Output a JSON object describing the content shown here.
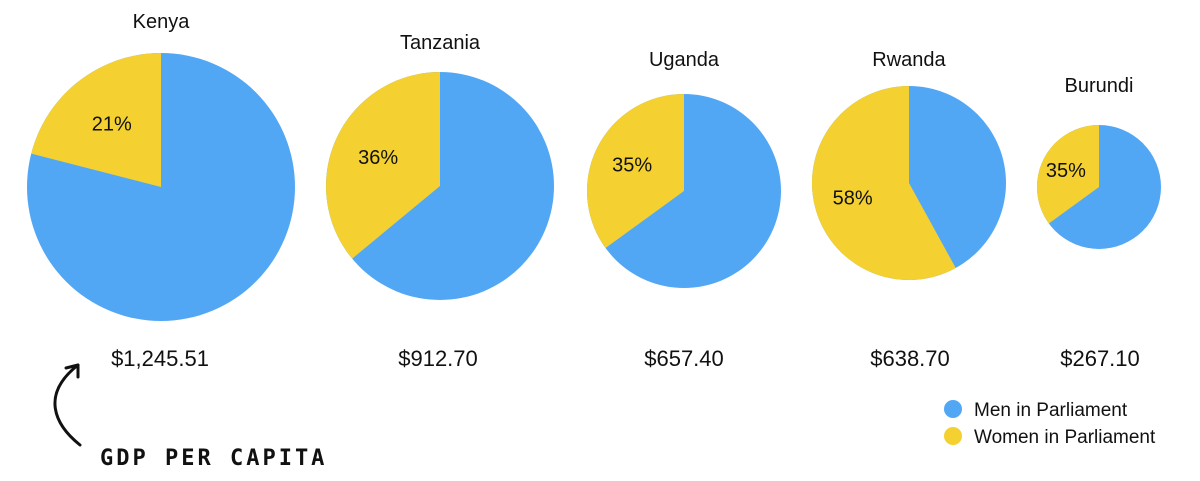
{
  "chart_data": {
    "type": "pie",
    "series_names": [
      "Men in Parliament",
      "Women in Parliament"
    ],
    "colors": {
      "men": "#52a7f5",
      "women": "#f4d030"
    },
    "charts": [
      {
        "country": "Kenya",
        "women_pct": 21,
        "women_label": "21%",
        "gdp_per_capita": 1245.51,
        "gdp_label": "$1,245.51"
      },
      {
        "country": "Tanzania",
        "women_pct": 36,
        "women_label": "36%",
        "gdp_per_capita": 912.7,
        "gdp_label": "$912.70"
      },
      {
        "country": "Uganda",
        "women_pct": 35,
        "women_label": "35%",
        "gdp_per_capita": 657.4,
        "gdp_label": "$657.40"
      },
      {
        "country": "Rwanda",
        "women_pct": 58,
        "women_label": "58%",
        "gdp_per_capita": 638.7,
        "gdp_label": "$638.70"
      },
      {
        "country": "Burundi",
        "women_pct": 35,
        "women_label": "35%",
        "gdp_per_capita": 267.1,
        "gdp_label": "$267.10"
      }
    ],
    "legend": [
      {
        "label": "Men in Parliament",
        "color": "#52a7f5"
      },
      {
        "label": "Women in Parliament",
        "color": "#f4d030"
      }
    ],
    "legend_position": "bottom-right",
    "annotation": "GDP PER CAPITA"
  }
}
